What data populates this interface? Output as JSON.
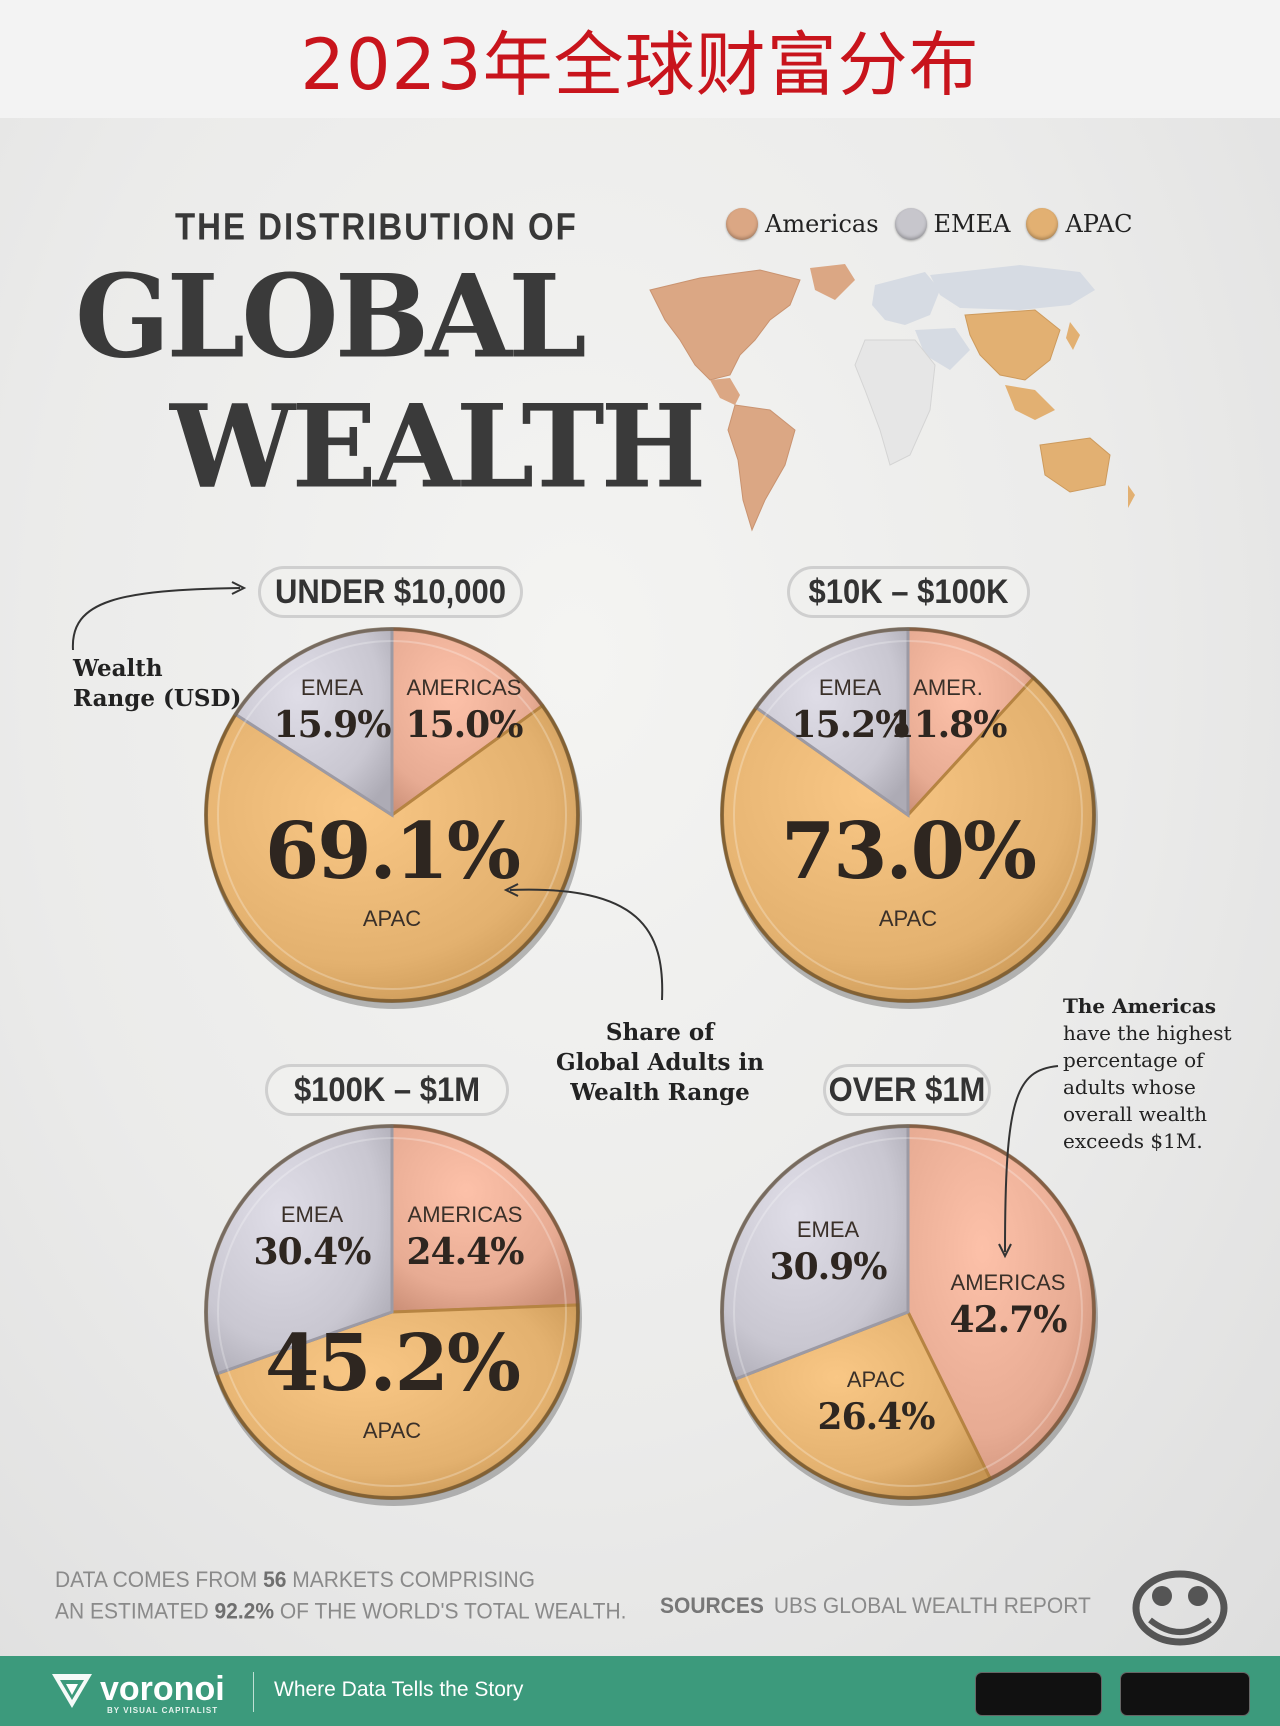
{
  "banner": {
    "title": "2023年全球财富分布"
  },
  "header": {
    "kicker": "THE DISTRIBUTION OF",
    "line1": "GLOBAL",
    "line2": "WEALTH"
  },
  "legend": {
    "items": [
      {
        "label": "Americas",
        "color": "#d9a882"
      },
      {
        "label": "EMEA",
        "color": "#c6c4c8"
      },
      {
        "label": "APAC",
        "color": "#e2b276"
      }
    ]
  },
  "annotations": {
    "wealth_range": [
      "Wealth",
      "Range (USD)"
    ],
    "share_of": [
      "Share of",
      "Global Adults in",
      "Wealth Range"
    ],
    "americas_note_bold": "The Americas",
    "americas_note": [
      "have the highest",
      "percentage of",
      "adults whose",
      "overall wealth",
      "exceeds $1M."
    ]
  },
  "chart_data": [
    {
      "type": "pie",
      "title": "UNDER $10,000",
      "slices": [
        {
          "label": "AMERICAS",
          "value": 15.0,
          "display": "15.0%"
        },
        {
          "label": "APAC",
          "value": 69.1,
          "display": "69.1%"
        },
        {
          "label": "EMEA",
          "value": 15.9,
          "display": "15.9%"
        }
      ]
    },
    {
      "type": "pie",
      "title": "$10K – $100K",
      "slices": [
        {
          "label": "AMER.",
          "value": 11.8,
          "display": "11.8%"
        },
        {
          "label": "APAC",
          "value": 73.0,
          "display": "73.0%"
        },
        {
          "label": "EMEA",
          "value": 15.2,
          "display": "15.2%"
        }
      ]
    },
    {
      "type": "pie",
      "title": "$100K – $1M",
      "slices": [
        {
          "label": "AMERICAS",
          "value": 24.4,
          "display": "24.4%"
        },
        {
          "label": "APAC",
          "value": 45.2,
          "display": "45.2%"
        },
        {
          "label": "EMEA",
          "value": 30.4,
          "display": "30.4%"
        }
      ]
    },
    {
      "type": "pie",
      "title": "OVER $1M",
      "slices": [
        {
          "label": "AMERICAS",
          "value": 42.7,
          "display": "42.7%"
        },
        {
          "label": "APAC",
          "value": 26.4,
          "display": "26.4%"
        },
        {
          "label": "EMEA",
          "value": 30.9,
          "display": "30.9%"
        }
      ]
    }
  ],
  "colors": {
    "americas": "#e7ab93",
    "emea": "#c9c7d1",
    "apac": "#e3b16f"
  },
  "footnote": {
    "pre1": "DATA COMES FROM ",
    "markets": "56",
    "post1": " MARKETS COMPRISING",
    "pre2": "AN ESTIMATED ",
    "pct": "92.2%",
    "post2": " OF THE WORLD'S TOTAL WEALTH."
  },
  "sources": {
    "label": "SOURCES",
    "text": "UBS GLOBAL WEALTH REPORT"
  },
  "footer": {
    "brand": "voronoi",
    "brand_sub": "BY VISUAL CAPITALIST",
    "tagline": "Where Data Tells the Story"
  }
}
